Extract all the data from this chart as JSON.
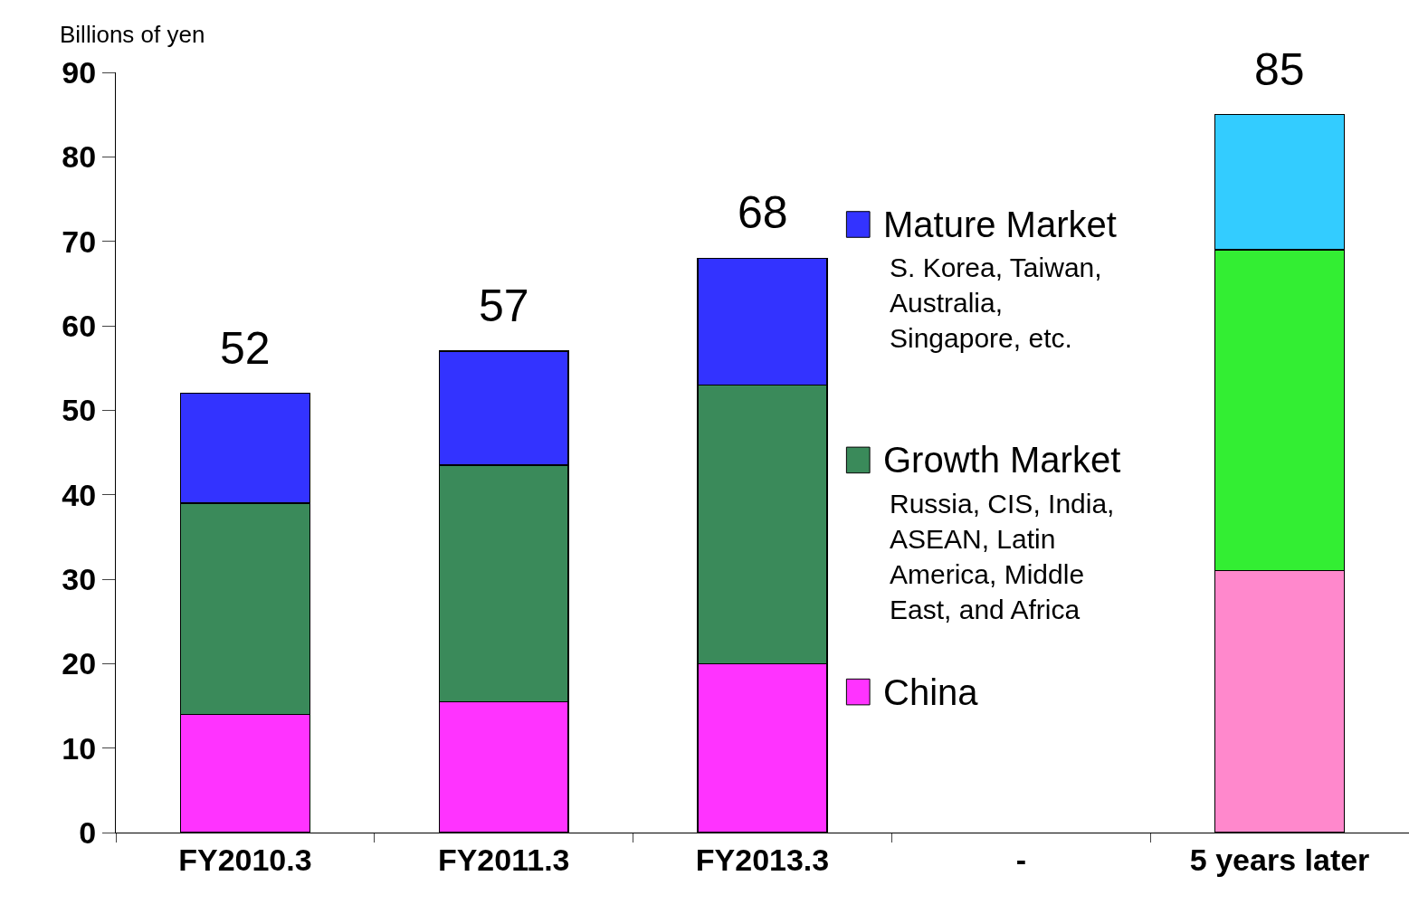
{
  "chart_data": {
    "type": "bar",
    "stacked": true,
    "ylabel": "Billions of yen",
    "categories": [
      "FY2010.3",
      "FY2011.3",
      "FY2013.3",
      "-",
      "5 years later"
    ],
    "series": [
      {
        "name": "China",
        "color": "#ff33ff",
        "colors": [
          "#ff33ff",
          "#ff33ff",
          "#ff33ff",
          "#ff33ff",
          "#ff88cc"
        ],
        "values": [
          14,
          15.5,
          20,
          null,
          31
        ]
      },
      {
        "name": "Growth Market",
        "color": "#3a8a5a",
        "colors": [
          "#3a8a5a",
          "#3a8a5a",
          "#3a8a5a",
          "#3a8a5a",
          "#33ee33"
        ],
        "values": [
          25,
          28,
          33,
          null,
          38
        ]
      },
      {
        "name": "Mature Market",
        "color": "#3333ff",
        "colors": [
          "#3333ff",
          "#3333ff",
          "#3333ff",
          "#3333ff",
          "#33ccff"
        ],
        "values": [
          13,
          13.5,
          15,
          null,
          16
        ]
      }
    ],
    "totals": [
      "52",
      "57",
      "68",
      null,
      "85"
    ],
    "annotations": [
      "S. Korea, Taiwan,\nAustralia,\nSingapore, etc.",
      "Russia, CIS, India,\nASEAN, Latin\nAmerica, Middle\nEast, and Africa"
    ],
    "ylim": [
      0,
      90
    ],
    "yticks": [
      0,
      10,
      20,
      30,
      40,
      50,
      60,
      70,
      80,
      90
    ],
    "grid": false,
    "legend": "right"
  }
}
